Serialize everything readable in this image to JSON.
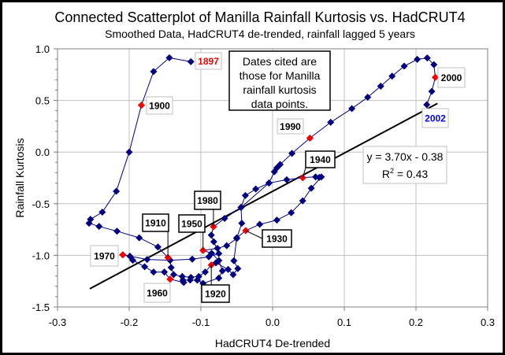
{
  "chart_data": {
    "type": "scatter",
    "title": "Connected Scatterplot of Manilla Rainfall Kurtosis vs. HadCRUT4",
    "subtitle": "Smoothed Data, HadCRUT4 de-trended, rainfall lagged 5 years",
    "xlabel": "HadCRUT4 De-trended",
    "ylabel": "Rainfall Kurtosis",
    "xlim": [
      -0.3,
      0.3
    ],
    "ylim": [
      -1.5,
      1.0
    ],
    "x_ticks": [
      "-0.3",
      "-0.2",
      "-0.1",
      "0.0",
      "0.1",
      "0.2",
      "0.3"
    ],
    "y_ticks": [
      "1.0",
      "0.5",
      "0.0",
      "-0.5",
      "-1.0",
      "-1.5"
    ],
    "grid": true,
    "connected": true,
    "series_color": "#000080",
    "highlight_color": "#ff0000",
    "points": [
      [
        -0.114,
        0.875
      ],
      [
        -0.144,
        0.913
      ],
      [
        -0.166,
        0.78
      ],
      [
        -0.183,
        0.454
      ],
      [
        -0.2,
        0.0
      ],
      [
        -0.218,
        -0.38
      ],
      [
        -0.2375,
        -0.582
      ],
      [
        -0.254,
        -0.651
      ],
      [
        -0.256,
        -0.689
      ],
      [
        -0.242,
        -0.72
      ],
      [
        -0.217,
        -0.766
      ],
      [
        -0.186,
        -0.83
      ],
      [
        -0.16,
        -0.919
      ],
      [
        -0.146,
        -1.021
      ],
      [
        -0.143,
        -1.047
      ],
      [
        -0.1415,
        -1.118
      ],
      [
        -0.138,
        -1.187
      ],
      [
        -0.126,
        -1.205
      ],
      [
        -0.114,
        -1.213
      ],
      [
        -0.103,
        -1.205
      ],
      [
        -0.094,
        -1.162
      ],
      [
        -0.0855,
        -1.093
      ],
      [
        -0.079,
        -1.072
      ],
      [
        -0.062,
        -1.136
      ],
      [
        -0.055,
        -1.187
      ],
      [
        -0.0485,
        -1.128
      ],
      [
        -0.054,
        -1.052
      ],
      [
        -0.05,
        -0.83
      ],
      [
        -0.0375,
        -0.761
      ],
      [
        -0.018,
        -0.7
      ],
      [
        0.006,
        -0.659
      ],
      [
        0.026,
        -0.587
      ],
      [
        0.042,
        -0.472
      ],
      [
        0.054,
        -0.35
      ],
      [
        0.068,
        -0.24
      ],
      [
        0.065,
        -0.245
      ],
      [
        0.06,
        -0.24
      ],
      [
        0.042,
        -0.248
      ],
      [
        0.0197,
        -0.268
      ],
      [
        -0.005,
        -0.3
      ],
      [
        -0.044,
        -0.536
      ],
      [
        -0.043,
        -0.689
      ],
      [
        -0.05,
        -0.837
      ],
      [
        -0.064,
        -0.906
      ],
      [
        -0.077,
        -0.932
      ],
      [
        -0.097,
        -0.952
      ],
      [
        -0.085,
        -0.98
      ],
      [
        -0.075,
        -1.05
      ],
      [
        -0.07,
        -1.15
      ],
      [
        -0.075,
        -1.22
      ],
      [
        -0.097,
        -1.271
      ],
      [
        -0.105,
        -1.24
      ],
      [
        -0.115,
        -1.24
      ],
      [
        -0.125,
        -1.24
      ],
      [
        -0.124,
        -1.263
      ],
      [
        -0.143,
        -1.23
      ],
      [
        -0.151,
        -1.162
      ],
      [
        -0.166,
        -1.162
      ],
      [
        -0.1785,
        -1.11
      ],
      [
        -0.195,
        -1.047
      ],
      [
        -0.199,
        -1.008
      ],
      [
        -0.209,
        -0.995
      ],
      [
        -0.175,
        -1.04
      ],
      [
        -0.143,
        -1.047
      ],
      [
        -0.112,
        -1.037
      ],
      [
        -0.089,
        -1.014
      ],
      [
        -0.075,
        -0.983
      ],
      [
        -0.082,
        -0.868
      ],
      [
        -0.0855,
        -0.804
      ],
      [
        -0.0825,
        -0.723
      ],
      [
        -0.067,
        -0.643
      ],
      [
        -0.044,
        -0.536
      ],
      [
        -0.038,
        -0.421
      ],
      [
        -0.0235,
        -0.358
      ],
      [
        -0.005,
        -0.3
      ],
      [
        0.0024,
        -0.191
      ],
      [
        0.006,
        -0.153
      ],
      [
        0.0105,
        -0.12
      ],
      [
        0.027,
        -0.013
      ],
      [
        0.052,
        0.135
      ],
      [
        0.081,
        0.288
      ],
      [
        0.1105,
        0.421
      ],
      [
        0.1327,
        0.531
      ],
      [
        0.1508,
        0.638
      ],
      [
        0.1667,
        0.735
      ],
      [
        0.1836,
        0.832
      ],
      [
        0.2018,
        0.898
      ],
      [
        0.2157,
        0.911
      ],
      [
        0.225,
        0.847
      ],
      [
        0.227,
        0.724
      ],
      [
        0.222,
        0.587
      ],
      [
        0.215,
        0.459
      ]
    ],
    "labeled_points": [
      {
        "label": "1897",
        "x": -0.114,
        "y": 0.875,
        "text_color": "#ff0000",
        "marker": "navy"
      },
      {
        "label": "1900",
        "x": -0.183,
        "y": 0.454,
        "text_color": "#000000",
        "marker": "red"
      },
      {
        "label": "1910",
        "x": -0.146,
        "y": -1.021,
        "text_color": "#000000",
        "marker": "red"
      },
      {
        "label": "1920",
        "x": -0.0855,
        "y": -1.093,
        "text_color": "#000000",
        "marker": "red"
      },
      {
        "label": "1930",
        "x": -0.0375,
        "y": -0.761,
        "text_color": "#000000",
        "marker": "red"
      },
      {
        "label": "1940",
        "x": 0.042,
        "y": -0.248,
        "text_color": "#000000",
        "marker": "red"
      },
      {
        "label": "1950",
        "x": -0.097,
        "y": -0.952,
        "text_color": "#000000",
        "marker": "red"
      },
      {
        "label": "1960",
        "x": -0.143,
        "y": -1.23,
        "text_color": "#000000",
        "marker": "red"
      },
      {
        "label": "1970",
        "x": -0.209,
        "y": -0.995,
        "text_color": "#000000",
        "marker": "red"
      },
      {
        "label": "1980",
        "x": -0.0825,
        "y": -0.723,
        "text_color": "#000000",
        "marker": "red"
      },
      {
        "label": "1990",
        "x": 0.052,
        "y": 0.135,
        "text_color": "#000000",
        "marker": "red"
      },
      {
        "label": "2000",
        "x": 0.227,
        "y": 0.724,
        "text_color": "#000000",
        "marker": "red"
      },
      {
        "label": "2002",
        "x": 0.215,
        "y": 0.459,
        "text_color": "#0000ff",
        "marker": "navy"
      }
    ],
    "trendline": {
      "slope": 3.7,
      "intercept": -0.38,
      "x_range": [
        -0.255,
        0.23
      ],
      "equation": "y = 3.70x - 0.38",
      "r2_prefix": "R",
      "r2_sup": "2",
      "r2_value": " = 0.43"
    },
    "annotation": [
      "Dates cited are",
      "those for Manilla",
      "rainfall kurtosis",
      "data points."
    ]
  }
}
